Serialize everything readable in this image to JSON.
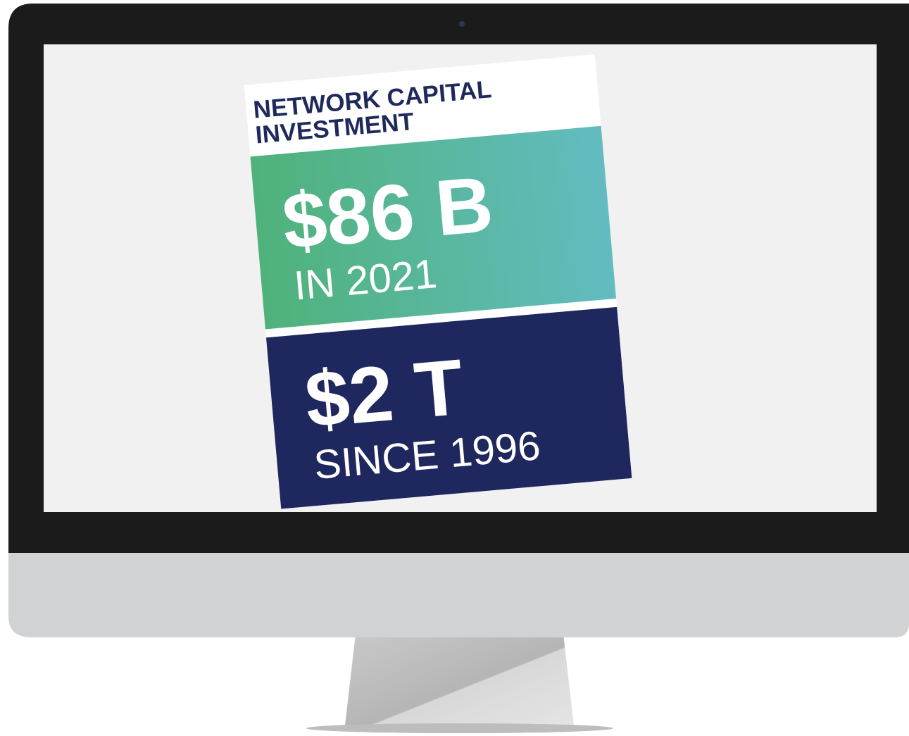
{
  "card": {
    "title_lines": [
      "NETWORK CAPITAL",
      "INVESTMENT"
    ],
    "stats": [
      {
        "value": "$86 B",
        "label": "IN 2021"
      },
      {
        "value": "$2 T",
        "label": "SINCE 1996"
      }
    ]
  }
}
